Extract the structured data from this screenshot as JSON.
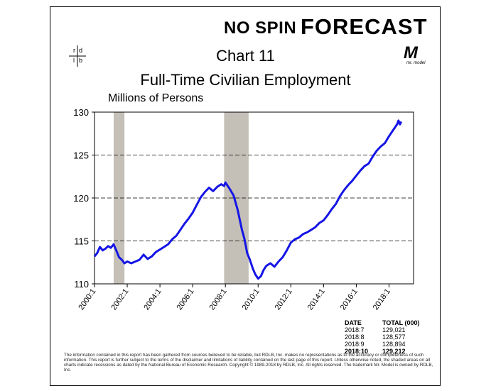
{
  "brand": {
    "left_text": "NO SPIN",
    "right_text": "FORECAST",
    "accent_color": "#1a9a3a"
  },
  "rdlb_logo": {
    "letters": [
      "r",
      "d",
      "l",
      "b"
    ]
  },
  "mr_model_logo": {
    "letter": "M",
    "caption": "mr. model"
  },
  "chart_data": {
    "type": "line",
    "title": "Chart 11",
    "subtitle": "Full-Time Civilian Employment",
    "units": "Millions of Persons",
    "xlabel": "",
    "ylabel": "",
    "ylim": [
      110,
      130
    ],
    "xlim": [
      2000.0,
      2019.5
    ],
    "yticks": [
      110,
      115,
      120,
      125,
      130
    ],
    "xticks": [
      {
        "value": 2000.0,
        "label": "2000:1"
      },
      {
        "value": 2002.0,
        "label": "2002:1"
      },
      {
        "value": 2004.0,
        "label": "2004:1"
      },
      {
        "value": 2006.0,
        "label": "2006:1"
      },
      {
        "value": 2008.0,
        "label": "2008:1"
      },
      {
        "value": 2010.0,
        "label": "2010:1"
      },
      {
        "value": 2012.0,
        "label": "2012:1"
      },
      {
        "value": 2014.0,
        "label": "2014:1"
      },
      {
        "value": 2016.0,
        "label": "2016:1"
      },
      {
        "value": 2018.0,
        "label": "2018:1"
      }
    ],
    "grid": "horizontal dashed",
    "line_color": "#1515e6",
    "recession_color": "#c4c0b8",
    "recessions": [
      [
        2001.17,
        2001.83
      ],
      [
        2007.92,
        2009.42
      ]
    ],
    "series": [
      {
        "x": [
          2000.0,
          2000.17,
          2000.33,
          2000.5,
          2000.67,
          2000.83,
          2001.0,
          2001.17,
          2001.33,
          2001.5,
          2001.67,
          2001.83,
          2002.0,
          2002.25,
          2002.5,
          2002.75,
          2003.0,
          2003.25,
          2003.5,
          2003.75,
          2004.0,
          2004.25,
          2004.5,
          2004.75,
          2005.0,
          2005.25,
          2005.5,
          2005.75,
          2006.0,
          2006.25,
          2006.5,
          2006.75,
          2007.0,
          2007.25,
          2007.5,
          2007.75,
          2007.92,
          2008.0,
          2008.25,
          2008.5,
          2008.75,
          2009.0,
          2009.17,
          2009.33,
          2009.5,
          2009.67,
          2009.83,
          2010.0,
          2010.17,
          2010.33,
          2010.5,
          2010.75,
          2011.0,
          2011.25,
          2011.5,
          2011.75,
          2012.0,
          2012.25,
          2012.5,
          2012.75,
          2013.0,
          2013.25,
          2013.5,
          2013.75,
          2014.0,
          2014.25,
          2014.5,
          2014.75,
          2015.0,
          2015.25,
          2015.5,
          2015.75,
          2016.0,
          2016.25,
          2016.5,
          2016.75,
          2017.0,
          2017.25,
          2017.5,
          2017.75,
          2018.0,
          2018.25,
          2018.5,
          2018.58,
          2018.67,
          2018.75
        ],
        "y": [
          113.2,
          113.6,
          114.3,
          113.9,
          114.1,
          114.4,
          114.2,
          114.6,
          113.9,
          113.1,
          112.8,
          112.4,
          112.6,
          112.4,
          112.6,
          112.8,
          113.4,
          112.9,
          113.2,
          113.7,
          114.0,
          114.3,
          114.6,
          115.2,
          115.6,
          116.3,
          117.0,
          117.6,
          118.3,
          119.2,
          120.1,
          120.7,
          121.2,
          120.8,
          121.3,
          121.6,
          121.4,
          121.8,
          121.1,
          120.3,
          118.6,
          116.4,
          115.2,
          113.6,
          112.8,
          111.8,
          111.1,
          110.6,
          110.9,
          111.6,
          112.1,
          112.4,
          112.0,
          112.6,
          113.1,
          113.9,
          114.8,
          115.2,
          115.4,
          115.8,
          116.0,
          116.3,
          116.6,
          117.1,
          117.4,
          118.0,
          118.7,
          119.3,
          120.2,
          120.9,
          121.5,
          122.0,
          122.6,
          123.2,
          123.7,
          124.0,
          124.8,
          125.5,
          126.0,
          126.4,
          127.2,
          127.9,
          128.6,
          129.02,
          128.58,
          128.89
        ]
      }
    ],
    "table": {
      "headers": [
        "DATE",
        "TOTAL (000)"
      ],
      "rows": [
        [
          "2018:7",
          "129,021"
        ],
        [
          "2018:8",
          "128,577"
        ],
        [
          "2018:9",
          "128,894"
        ],
        [
          "2018:10",
          "129,212"
        ]
      ]
    }
  },
  "disclaimer": "The information contained in this report has been gathered from sources believed to be reliable, but RDLB, Inc. makes no representations as to the accuracy or completeness of such information. This report is further subject to the terms of the disclaimer and limitations of liability contained on the last page of this report. Unless otherwise noted, the shaded areas on all charts indicate recessions as dated by the National Bureau of Economic Research. Copyright © 1989-2018 by RDLB, Inc. All rights reserved. The trademark Mr. Model is owned by RDLB, Inc."
}
